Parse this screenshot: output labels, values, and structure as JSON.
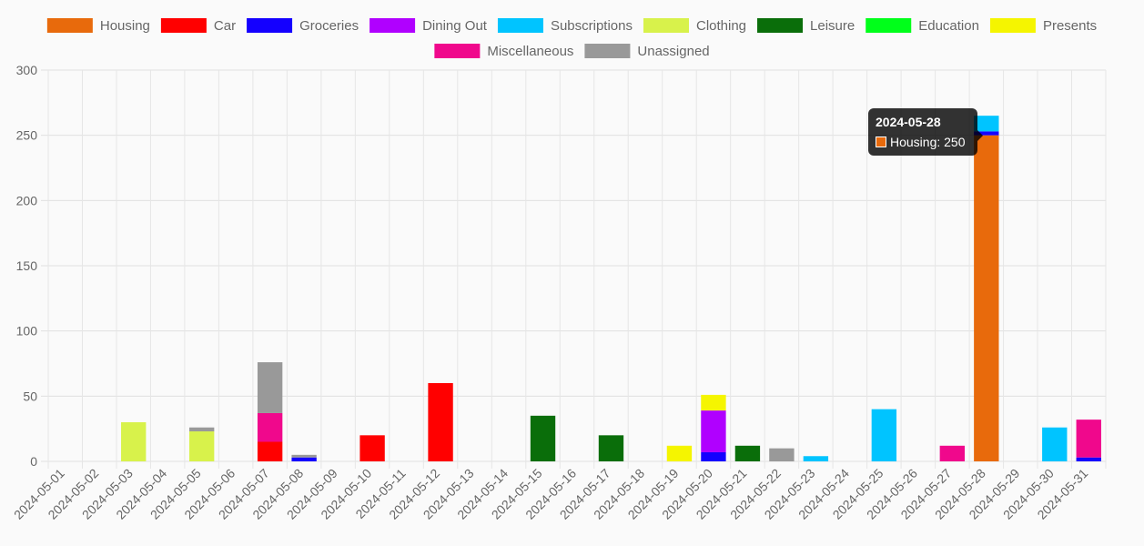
{
  "chart_data": {
    "type": "bar",
    "stacked": true,
    "categories": [
      "2024-05-01",
      "2024-05-02",
      "2024-05-03",
      "2024-05-04",
      "2024-05-05",
      "2024-05-06",
      "2024-05-07",
      "2024-05-08",
      "2024-05-09",
      "2024-05-10",
      "2024-05-11",
      "2024-05-12",
      "2024-05-13",
      "2024-05-14",
      "2024-05-15",
      "2024-05-16",
      "2024-05-17",
      "2024-05-18",
      "2024-05-19",
      "2024-05-20",
      "2024-05-21",
      "2024-05-22",
      "2024-05-23",
      "2024-05-24",
      "2024-05-25",
      "2024-05-26",
      "2024-05-27",
      "2024-05-28",
      "2024-05-29",
      "2024-05-30",
      "2024-05-31"
    ],
    "ylim": [
      0,
      300
    ],
    "yticks": [
      0,
      50,
      100,
      150,
      200,
      250,
      300
    ],
    "grid": true,
    "legend_position": "top",
    "series": [
      {
        "name": "Housing",
        "color": "#e86a0c",
        "values": [
          0,
          0,
          0,
          0,
          0,
          0,
          0,
          0,
          0,
          0,
          0,
          0,
          0,
          0,
          0,
          0,
          0,
          0,
          0,
          0,
          0,
          0,
          0,
          0,
          0,
          0,
          0,
          250,
          0,
          0,
          0
        ]
      },
      {
        "name": "Car",
        "color": "#ff0000",
        "values": [
          0,
          0,
          0,
          0,
          0,
          0,
          15,
          0,
          0,
          20,
          0,
          60,
          0,
          0,
          0,
          0,
          0,
          0,
          0,
          0,
          0,
          0,
          0,
          0,
          0,
          0,
          0,
          0,
          0,
          0,
          0
        ]
      },
      {
        "name": "Groceries",
        "color": "#1400ff",
        "values": [
          0,
          0,
          0,
          0,
          0,
          0,
          0,
          3,
          0,
          0,
          0,
          0,
          0,
          0,
          0,
          0,
          0,
          0,
          0,
          7,
          0,
          0,
          0,
          0,
          0,
          0,
          0,
          3,
          0,
          0,
          3
        ]
      },
      {
        "name": "Dining Out",
        "color": "#b000ff",
        "values": [
          0,
          0,
          0,
          0,
          0,
          0,
          0,
          0,
          0,
          0,
          0,
          0,
          0,
          0,
          0,
          0,
          0,
          0,
          0,
          32,
          0,
          0,
          0,
          0,
          0,
          0,
          0,
          0,
          0,
          0,
          0
        ]
      },
      {
        "name": "Subscriptions",
        "color": "#00c4ff",
        "values": [
          0,
          0,
          0,
          0,
          0,
          0,
          0,
          0,
          0,
          0,
          0,
          0,
          0,
          0,
          0,
          0,
          0,
          0,
          0,
          0,
          0,
          0,
          4,
          0,
          40,
          0,
          0,
          12,
          0,
          26,
          0
        ]
      },
      {
        "name": "Clothing",
        "color": "#d8f24b",
        "values": [
          0,
          0,
          30,
          0,
          23,
          0,
          0,
          0,
          0,
          0,
          0,
          0,
          0,
          0,
          0,
          0,
          0,
          0,
          0,
          0,
          0,
          0,
          0,
          0,
          0,
          0,
          0,
          0,
          0,
          0,
          0
        ]
      },
      {
        "name": "Leisure",
        "color": "#0a6e0a",
        "values": [
          0,
          0,
          0,
          0,
          0,
          0,
          0,
          0,
          0,
          0,
          0,
          0,
          0,
          0,
          35,
          0,
          20,
          0,
          0,
          0,
          12,
          0,
          0,
          0,
          0,
          0,
          0,
          0,
          0,
          0,
          0
        ]
      },
      {
        "name": "Education",
        "color": "#00ff1a",
        "values": [
          0,
          0,
          0,
          0,
          0,
          0,
          0,
          0,
          0,
          0,
          0,
          0,
          0,
          0,
          0,
          0,
          0,
          0,
          0,
          0,
          0,
          0,
          0,
          0,
          0,
          0,
          0,
          0,
          0,
          0,
          0
        ]
      },
      {
        "name": "Presents",
        "color": "#f5f500",
        "values": [
          0,
          0,
          0,
          0,
          0,
          0,
          0,
          0,
          0,
          0,
          0,
          0,
          0,
          0,
          0,
          0,
          0,
          0,
          12,
          12,
          0,
          0,
          0,
          0,
          0,
          0,
          0,
          0,
          0,
          0,
          0
        ]
      },
      {
        "name": "Miscellaneous",
        "color": "#f0088c",
        "values": [
          0,
          0,
          0,
          0,
          0,
          0,
          22,
          0,
          0,
          0,
          0,
          0,
          0,
          0,
          0,
          0,
          0,
          0,
          0,
          0,
          0,
          0,
          0,
          0,
          0,
          0,
          12,
          0,
          0,
          0,
          29
        ]
      },
      {
        "name": "Unassigned",
        "color": "#999999",
        "values": [
          0,
          0,
          0,
          0,
          3,
          0,
          39,
          2,
          0,
          0,
          0,
          0,
          0,
          0,
          0,
          0,
          0,
          0,
          0,
          0,
          0,
          10,
          0,
          0,
          0,
          0,
          0,
          0,
          0,
          0,
          0
        ]
      }
    ]
  },
  "tooltip": {
    "title": "2024-05-28",
    "label": "Housing: 250",
    "color": "#e86a0c"
  }
}
